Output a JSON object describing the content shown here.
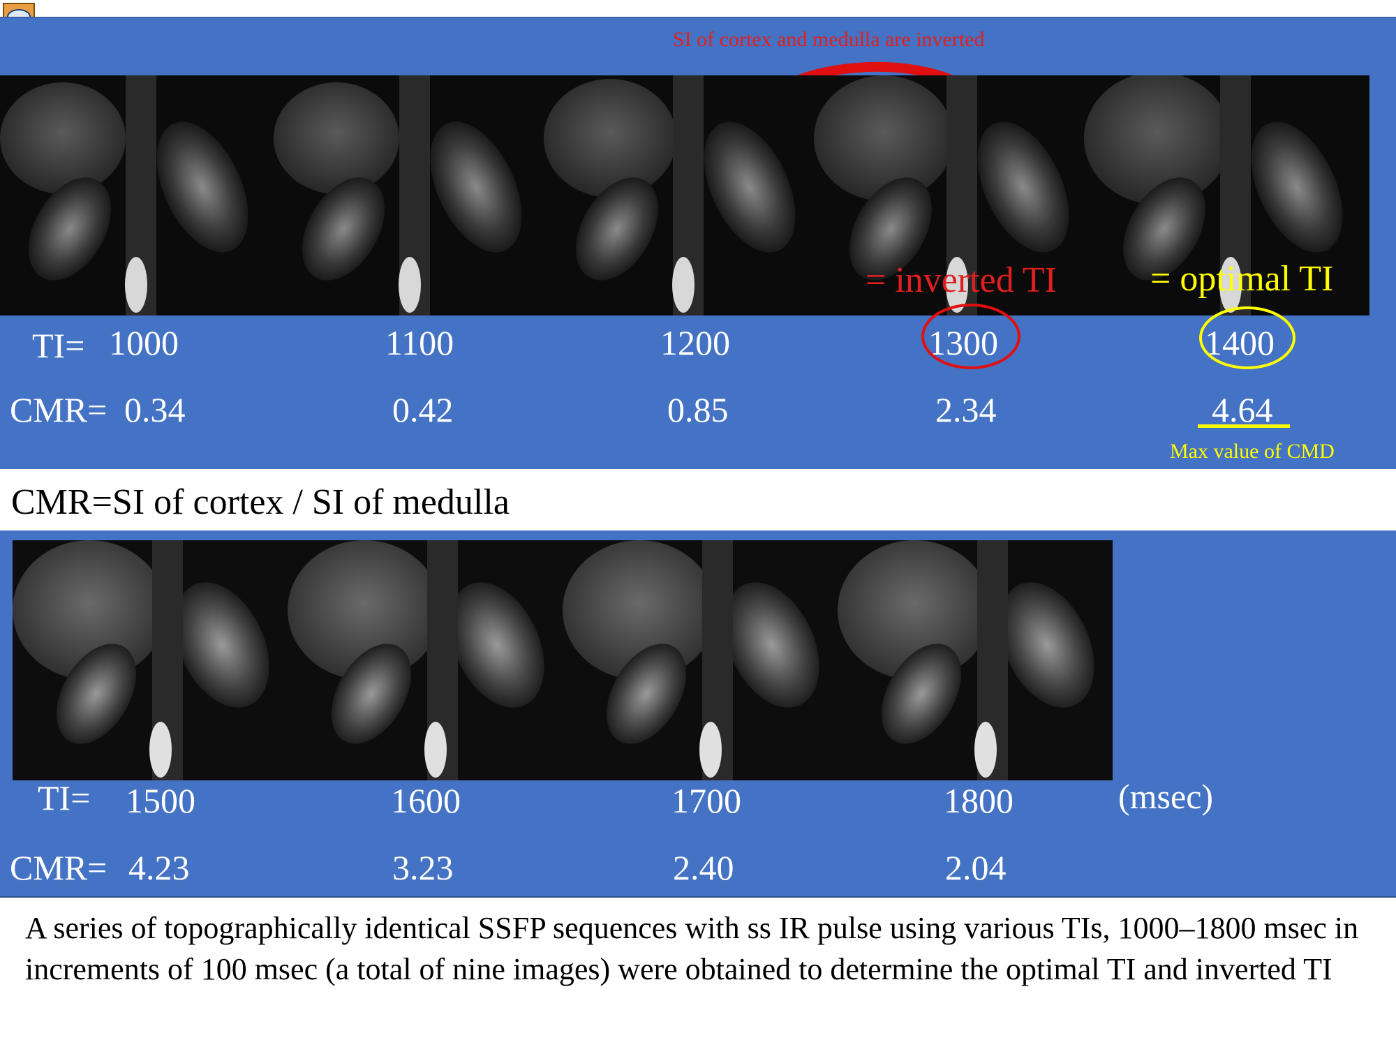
{
  "annotation_top": "SI of cortex and medulla are inverted",
  "top_row": {
    "ti_prefix": "TI=",
    "cmr_prefix": "CMR=",
    "ti_values": [
      "1000",
      "1100",
      "1200",
      "1300",
      "1400"
    ],
    "cmr_values": [
      "0.34",
      "0.42",
      "0.85",
      "2.34",
      "4.64"
    ],
    "inverted_label": "= inverted TI",
    "optimal_label": "= optimal TI",
    "max_note": "Max value of CMD"
  },
  "formula": "CMR=SI of cortex / SI of medulla",
  "bottom_row": {
    "ti_prefix": "TI=",
    "cmr_prefix": "CMR=",
    "ti_values": [
      "1500",
      "1600",
      "1700",
      "1800"
    ],
    "cmr_values": [
      "4.23",
      "3.23",
      "2.40",
      "2.04"
    ],
    "unit": "(msec)"
  },
  "caption": "A series of topographically identical SSFP sequences with ss IR pulse using various TIs, 1000–1800 msec in increments of 100 msec (a total of nine images) were obtained to determine the optimal TI and inverted TI",
  "colors": {
    "panel": "#4472c4",
    "inverted": "#e02020",
    "optimal": "#ffff00"
  },
  "icons": {
    "note": "comment-icon"
  }
}
